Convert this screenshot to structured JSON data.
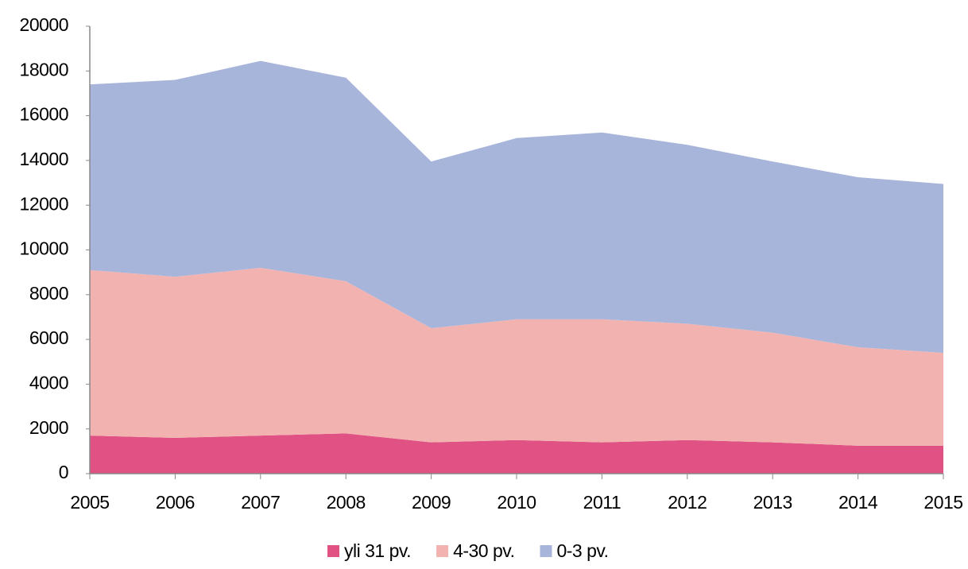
{
  "chart_data": {
    "type": "stacked_area",
    "categories": [
      "2005",
      "2006",
      "2007",
      "2008",
      "2009",
      "2010",
      "2011",
      "2012",
      "2013",
      "2014",
      "2015"
    ],
    "series": [
      {
        "name": "yli 31 pv.",
        "color": "#e05283",
        "values": [
          1700,
          1600,
          1700,
          1800,
          1400,
          1500,
          1400,
          1500,
          1400,
          1250,
          1250
        ]
      },
      {
        "name": "4-30 pv.",
        "color": "#f2b3b0",
        "values": [
          7400,
          7200,
          7500,
          6800,
          5100,
          5400,
          5500,
          5200,
          4900,
          4400,
          4150
        ]
      },
      {
        "name": "0-3 pv.",
        "color": "#a8b5da",
        "values": [
          8300,
          8800,
          9250,
          9100,
          7450,
          8100,
          8350,
          8000,
          7650,
          7600,
          7550
        ]
      }
    ],
    "ylim": [
      0,
      20000
    ],
    "yticks": [
      0,
      2000,
      4000,
      6000,
      8000,
      10000,
      12000,
      14000,
      16000,
      18000,
      20000
    ],
    "grid": false,
    "legend": "bottom"
  }
}
